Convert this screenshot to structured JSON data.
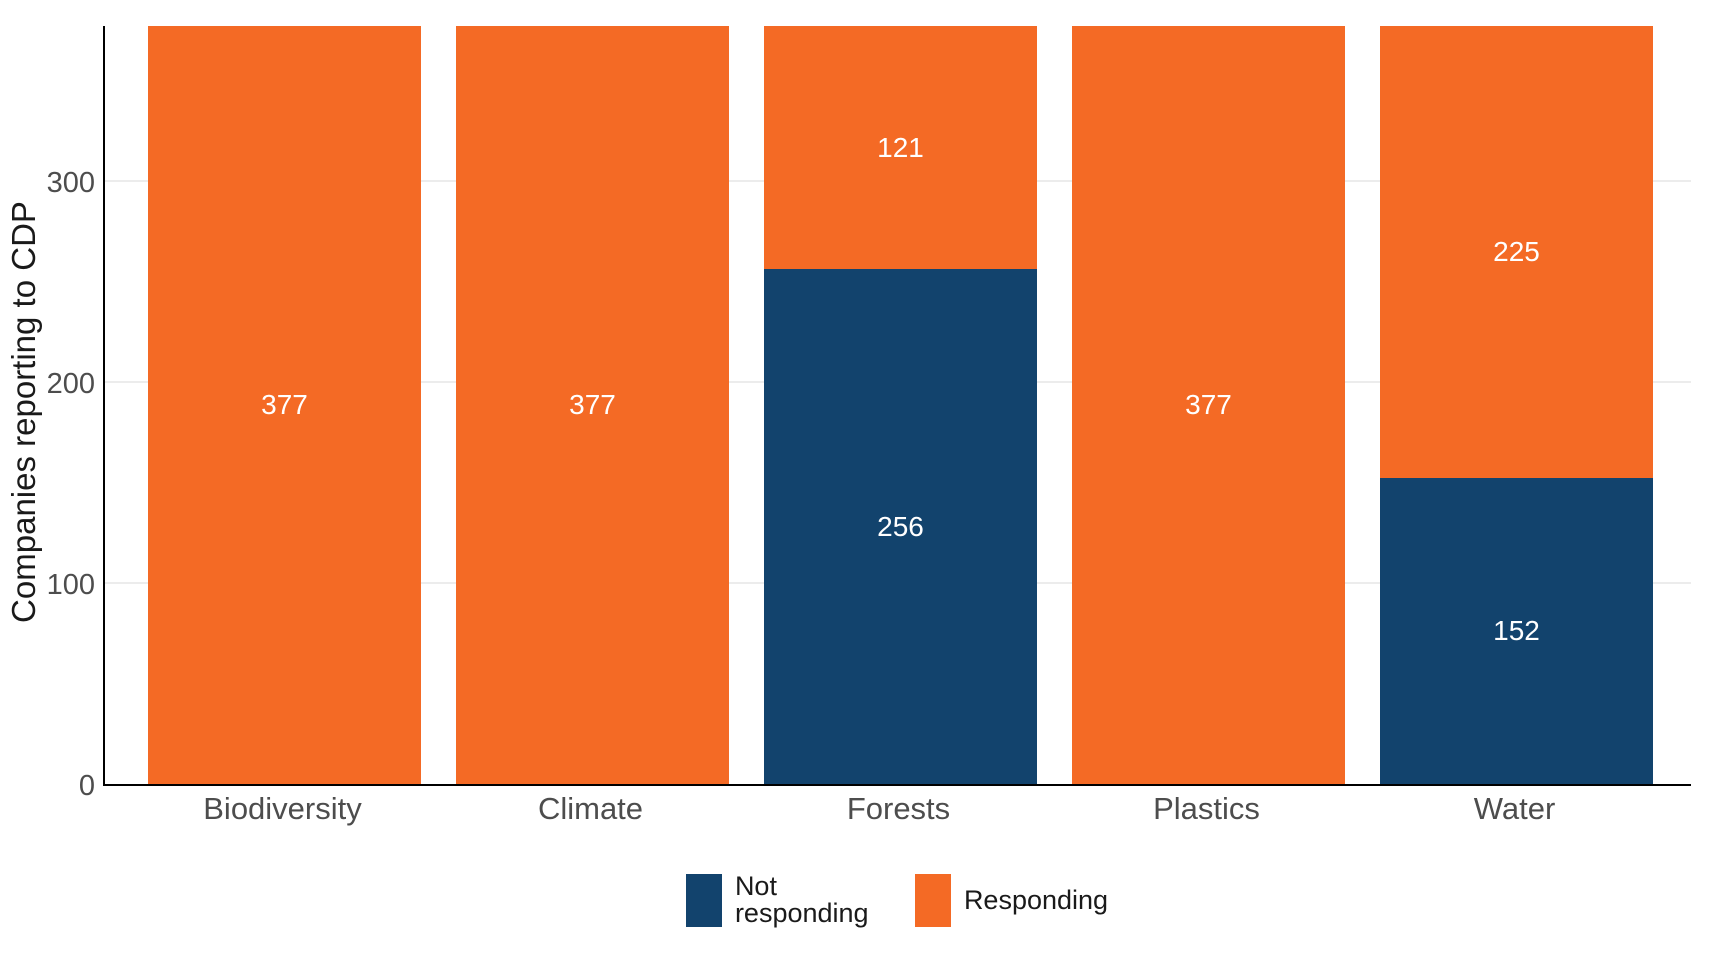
{
  "chart_data": {
    "type": "bar",
    "stacked": true,
    "ylabel": "Companies reporting to CDP",
    "categories": [
      "Biodiversity",
      "Climate",
      "Forests",
      "Plastics",
      "Water"
    ],
    "series": [
      {
        "name": "Not responding",
        "color": "#12436D",
        "values": [
          0,
          0,
          256,
          0,
          152
        ]
      },
      {
        "name": "Responding",
        "color": "#F46A25",
        "values": [
          377,
          377,
          121,
          377,
          225
        ]
      }
    ],
    "bar_value_labels": [
      {
        "category": "Biodiversity",
        "Responding": 377
      },
      {
        "category": "Climate",
        "Responding": 377
      },
      {
        "category": "Forests",
        "Not responding": 256,
        "Responding": 121
      },
      {
        "category": "Plastics",
        "Responding": 377
      },
      {
        "category": "Water",
        "Not responding": 152,
        "Responding": 225
      }
    ],
    "yticks": [
      0,
      100,
      200,
      300
    ],
    "ylim": [
      0,
      378
    ],
    "grid": "horizontal-light",
    "legend_position": "bottom-center",
    "legend": [
      "Not responding",
      "Responding"
    ]
  },
  "colors": {
    "background": "#FFFFFF",
    "axis_line": "#000000",
    "gridline": "#ECECEC",
    "tick_label": "#4D4D4D",
    "category_label": "#4D4D4D",
    "axis_title": "#1A1A1A",
    "legend_text": "#1A1A1A",
    "bar_value_label": "#FFFFFF",
    "not_responding": "#12436D",
    "responding": "#F46A25"
  }
}
